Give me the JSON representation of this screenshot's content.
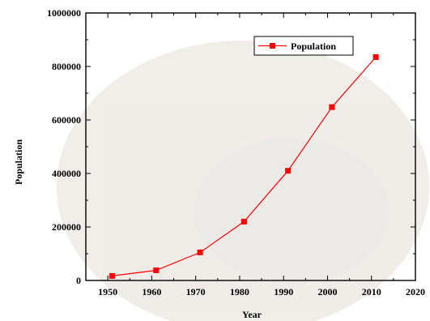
{
  "chart_data": {
    "type": "line",
    "xlabel": "Year",
    "ylabel": "Population",
    "xlim": [
      1945,
      2020
    ],
    "ylim": [
      0,
      1000000
    ],
    "xticks": [
      1950,
      1960,
      1970,
      1980,
      1990,
      2000,
      2010,
      2020
    ],
    "yticks": [
      0,
      200000,
      400000,
      600000,
      800000,
      1000000
    ],
    "xtick_labels": [
      "1950",
      "1960",
      "1970",
      "1980",
      "1990",
      "2000",
      "2010",
      "2020"
    ],
    "ytick_labels": [
      "0",
      "200000",
      "400000",
      "600000",
      "800000",
      "1000000"
    ],
    "grid": false,
    "legend_position": "top-right",
    "series": [
      {
        "name": "Population",
        "color": "#ff0000",
        "marker": "square",
        "x": [
          1951,
          1961,
          1971,
          1981,
          1991,
          2001,
          2011
        ],
        "values": [
          17000,
          38000,
          105000,
          220000,
          410000,
          648000,
          835000
        ]
      }
    ]
  }
}
